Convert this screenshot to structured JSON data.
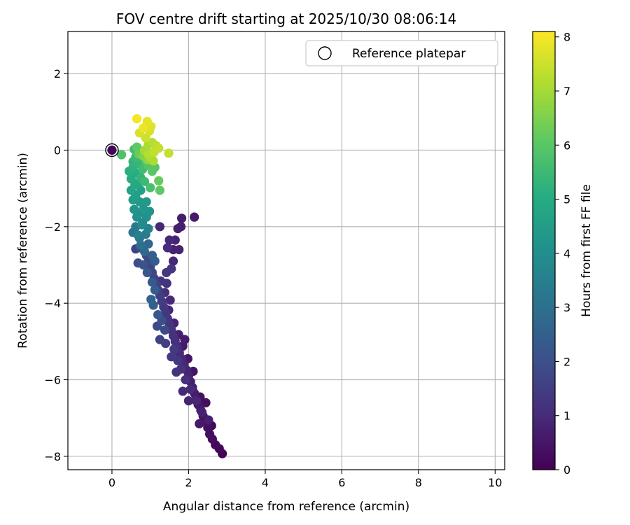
{
  "chart_data": {
    "type": "scatter",
    "title": "FOV centre drift starting at 2025/10/30 08:06:14",
    "xlabel": "Angular distance from reference (arcmin)",
    "ylabel": "Rotation from reference (arcmin)",
    "xlim": [
      -1.15,
      10.25
    ],
    "ylim": [
      -8.35,
      3.1
    ],
    "xticks": [
      0,
      2,
      4,
      6,
      8,
      10
    ],
    "yticks": [
      2,
      0,
      -2,
      -4,
      -6,
      -8
    ],
    "grid": true,
    "legend": {
      "placement": "top-right",
      "entries": [
        "Reference platepar"
      ]
    },
    "reference_point": {
      "x": 0,
      "y": 0,
      "hours": 0
    },
    "colorbar": {
      "label": "Hours from first FF file",
      "range": [
        0,
        8.1
      ],
      "ticks": [
        0,
        1,
        2,
        3,
        4,
        5,
        6,
        7,
        8
      ],
      "colormap": "viridis"
    },
    "points": [
      [
        0.0,
        0.0,
        0.05
      ],
      [
        2.88,
        -7.93,
        0.1
      ],
      [
        2.8,
        -7.8,
        0.15
      ],
      [
        2.7,
        -7.7,
        0.2
      ],
      [
        2.62,
        -7.55,
        0.25
      ],
      [
        2.55,
        -7.42,
        0.3
      ],
      [
        2.5,
        -7.25,
        0.35
      ],
      [
        2.45,
        -7.1,
        0.4
      ],
      [
        2.38,
        -6.95,
        0.45
      ],
      [
        2.32,
        -6.8,
        0.5
      ],
      [
        2.25,
        -6.65,
        0.55
      ],
      [
        2.2,
        -6.5,
        0.6
      ],
      [
        2.15,
        -6.35,
        0.65
      ],
      [
        2.1,
        -6.2,
        0.7
      ],
      [
        2.05,
        -6.05,
        0.75
      ],
      [
        2.0,
        -5.9,
        0.8
      ],
      [
        1.95,
        -5.75,
        0.85
      ],
      [
        1.88,
        -5.6,
        0.9
      ],
      [
        1.82,
        -5.45,
        0.95
      ],
      [
        1.76,
        -5.3,
        1.0
      ],
      [
        1.7,
        -5.15,
        1.05
      ],
      [
        1.65,
        -5.0,
        1.1
      ],
      [
        1.6,
        -4.85,
        1.15
      ],
      [
        1.55,
        -4.7,
        1.2
      ],
      [
        1.5,
        -4.55,
        1.25
      ],
      [
        1.45,
        -4.4,
        1.3
      ],
      [
        1.4,
        -4.25,
        1.35
      ],
      [
        1.35,
        -4.1,
        1.4
      ],
      [
        1.3,
        -3.95,
        1.45
      ],
      [
        1.25,
        -3.8,
        1.5
      ],
      [
        1.2,
        -3.65,
        1.55
      ],
      [
        1.15,
        -3.5,
        1.6
      ],
      [
        1.1,
        -3.35,
        1.65
      ],
      [
        1.05,
        -3.2,
        1.7
      ],
      [
        1.0,
        -3.05,
        1.75
      ],
      [
        0.95,
        -2.9,
        1.8
      ],
      [
        0.9,
        -2.75,
        1.85
      ],
      [
        2.6,
        -7.2,
        0.2
      ],
      [
        2.3,
        -6.45,
        0.35
      ],
      [
        2.45,
        -6.6,
        0.3
      ],
      [
        1.98,
        -5.45,
        0.5
      ],
      [
        2.12,
        -5.78,
        0.45
      ],
      [
        1.85,
        -5.12,
        0.6
      ],
      [
        1.74,
        -4.82,
        0.7
      ],
      [
        1.9,
        -4.95,
        0.65
      ],
      [
        1.62,
        -4.52,
        0.8
      ],
      [
        1.48,
        -4.18,
        0.9
      ],
      [
        1.52,
        -3.92,
        1.0
      ],
      [
        1.38,
        -3.72,
        1.1
      ],
      [
        1.43,
        -3.48,
        1.2
      ],
      [
        1.55,
        -3.1,
        1.3
      ],
      [
        1.27,
        -3.42,
        1.25
      ],
      [
        1.42,
        -3.2,
        1.35
      ],
      [
        1.6,
        -2.9,
        0.9
      ],
      [
        1.75,
        -2.6,
        0.8
      ],
      [
        1.65,
        -2.35,
        0.85
      ],
      [
        1.8,
        -2.0,
        0.7
      ],
      [
        1.82,
        -1.78,
        0.65
      ],
      [
        2.15,
        -1.75,
        0.6
      ],
      [
        1.72,
        -2.05,
        0.72
      ],
      [
        1.25,
        -2.0,
        0.95
      ],
      [
        1.45,
        -2.55,
        1.05
      ],
      [
        1.6,
        -2.6,
        0.78
      ],
      [
        1.5,
        -2.35,
        0.9
      ],
      [
        0.62,
        -2.58,
        1.6
      ],
      [
        0.72,
        -2.55,
        1.9
      ],
      [
        0.68,
        -2.95,
        2.0
      ],
      [
        0.82,
        -3.0,
        2.1
      ],
      [
        0.92,
        -3.2,
        2.2
      ],
      [
        1.05,
        -3.45,
        2.3
      ],
      [
        1.12,
        -3.65,
        2.4
      ],
      [
        1.02,
        -3.9,
        2.6
      ],
      [
        1.08,
        -4.05,
        2.5
      ],
      [
        1.2,
        -4.3,
        2.2
      ],
      [
        1.3,
        -4.45,
        2.0
      ],
      [
        1.18,
        -4.6,
        1.9
      ],
      [
        1.38,
        -4.7,
        1.8
      ],
      [
        1.25,
        -4.95,
        1.6
      ],
      [
        1.4,
        -5.05,
        1.5
      ],
      [
        1.62,
        -5.2,
        1.4
      ],
      [
        1.72,
        -5.5,
        1.3
      ],
      [
        1.8,
        -5.72,
        1.2
      ],
      [
        1.92,
        -6.0,
        1.1
      ],
      [
        2.05,
        -6.25,
        1.0
      ],
      [
        2.2,
        -6.55,
        0.9
      ],
      [
        2.35,
        -6.85,
        0.8
      ],
      [
        2.52,
        -7.05,
        0.7
      ],
      [
        2.28,
        -7.15,
        0.6
      ],
      [
        1.55,
        -5.4,
        1.4
      ],
      [
        1.68,
        -5.8,
        1.2
      ],
      [
        1.85,
        -6.3,
        1.0
      ],
      [
        2.0,
        -6.55,
        0.85
      ],
      [
        0.55,
        -2.15,
        3.1
      ],
      [
        0.62,
        -2.0,
        3.3
      ],
      [
        0.68,
        -2.22,
        3.5
      ],
      [
        0.75,
        -2.48,
        3.0
      ],
      [
        0.85,
        -2.65,
        2.8
      ],
      [
        0.95,
        -2.45,
        2.7
      ],
      [
        1.05,
        -2.75,
        2.5
      ],
      [
        1.12,
        -2.9,
        2.4
      ],
      [
        0.72,
        -2.3,
        3.2
      ],
      [
        0.88,
        -2.2,
        3.4
      ],
      [
        0.95,
        -2.05,
        3.6
      ],
      [
        0.8,
        -1.9,
        3.8
      ],
      [
        0.65,
        -1.75,
        4.0
      ],
      [
        0.58,
        -1.55,
        4.2
      ],
      [
        0.72,
        -1.35,
        4.4
      ],
      [
        0.82,
        -1.55,
        4.3
      ],
      [
        0.9,
        -1.75,
        4.1
      ],
      [
        0.55,
        -1.3,
        4.5
      ],
      [
        0.5,
        -1.05,
        4.7
      ],
      [
        0.6,
        -0.9,
        4.9
      ],
      [
        0.5,
        -0.75,
        5.0
      ],
      [
        0.45,
        -0.55,
        5.1
      ],
      [
        0.55,
        -0.45,
        5.2
      ],
      [
        0.65,
        -0.6,
        5.0
      ],
      [
        0.75,
        -1.05,
        4.6
      ],
      [
        0.7,
        -0.85,
        4.8
      ],
      [
        0.62,
        -1.18,
        4.55
      ],
      [
        0.98,
        -1.6,
        4.2
      ],
      [
        0.9,
        -1.35,
        4.4
      ],
      [
        0.78,
        -1.95,
        3.9
      ],
      [
        0.7,
        -1.65,
        4.1
      ],
      [
        0.55,
        -0.3,
        5.3
      ],
      [
        0.62,
        -0.18,
        5.5
      ],
      [
        0.7,
        -0.35,
        5.4
      ],
      [
        0.8,
        -0.5,
        5.6
      ],
      [
        0.88,
        -0.28,
        5.8
      ],
      [
        0.95,
        -0.4,
        5.9
      ],
      [
        1.05,
        -0.55,
        6.0
      ],
      [
        0.58,
        0.02,
        5.6
      ],
      [
        0.25,
        -0.12,
        5.8
      ],
      [
        0.75,
        -0.72,
        5.3
      ],
      [
        0.85,
        -0.82,
        5.5
      ],
      [
        1.0,
        -0.98,
        5.7
      ],
      [
        1.22,
        -0.8,
        6.2
      ],
      [
        1.25,
        -1.05,
        6.1
      ],
      [
        1.12,
        -0.45,
        6.0
      ],
      [
        0.65,
        0.08,
        6.1
      ],
      [
        0.7,
        -0.1,
        6.2
      ],
      [
        0.9,
        -0.05,
        6.3
      ],
      [
        0.82,
        -0.15,
        6.6
      ],
      [
        0.92,
        -0.25,
        6.7
      ],
      [
        1.02,
        -0.15,
        6.8
      ],
      [
        0.85,
        0.0,
        7.0
      ],
      [
        0.95,
        0.15,
        7.1
      ],
      [
        1.05,
        0.2,
        7.2
      ],
      [
        1.15,
        0.12,
        7.3
      ],
      [
        1.22,
        0.05,
        7.4
      ],
      [
        1.1,
        -0.05,
        7.35
      ],
      [
        0.95,
        -0.1,
        7.2
      ],
      [
        1.48,
        -0.08,
        7.4
      ],
      [
        1.08,
        -0.28,
        7.1
      ],
      [
        0.88,
        0.32,
        7.5
      ],
      [
        0.98,
        0.5,
        7.6
      ],
      [
        0.92,
        0.75,
        7.8
      ],
      [
        1.02,
        0.62,
        7.7
      ],
      [
        0.82,
        0.58,
        7.9
      ],
      [
        0.65,
        0.82,
        8.0
      ],
      [
        0.72,
        0.45,
        7.6
      ],
      [
        0.98,
        -0.2,
        7.0
      ]
    ]
  }
}
